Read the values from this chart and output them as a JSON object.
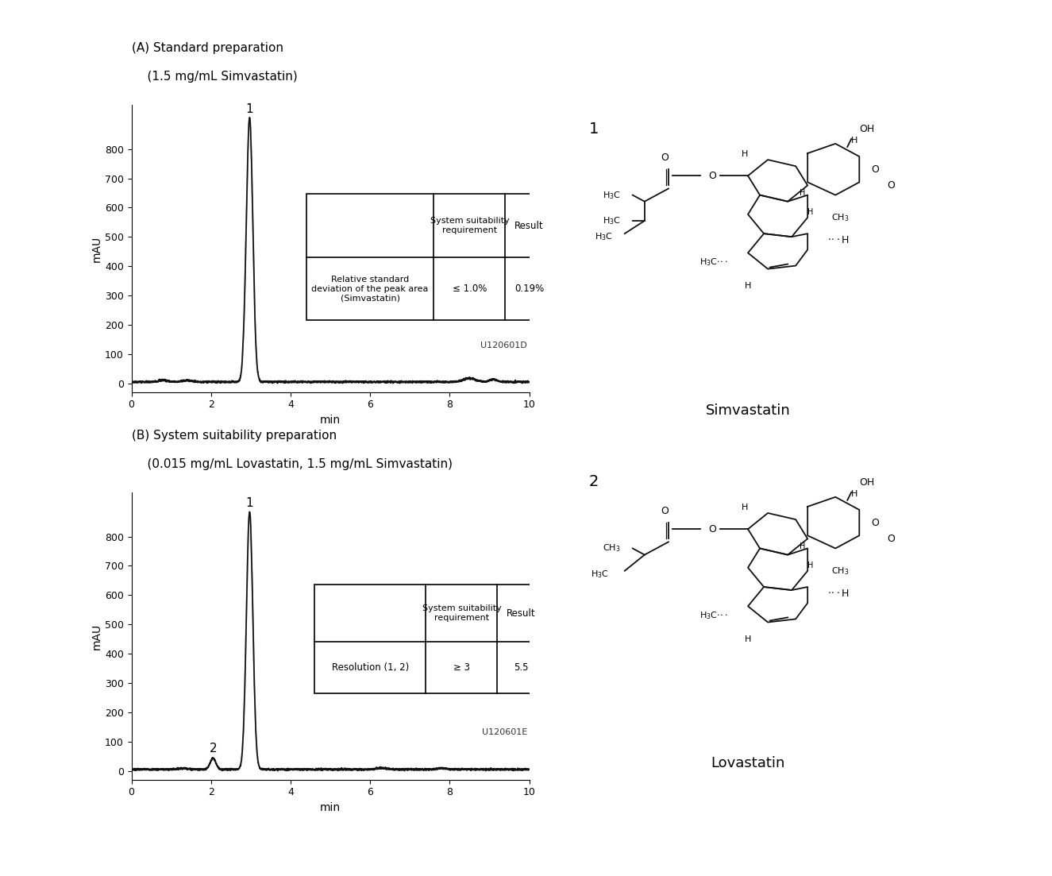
{
  "panel_A_title_line1": "(A) Standard preparation",
  "panel_A_title_line2": "    (1.5 mg/mL Simvastatin)",
  "panel_B_title_line1": "(B) System suitability preparation",
  "panel_B_title_line2": "    (0.015 mg/mL Lovastatin, 1.5 mg/mL Simvastatin)",
  "ylabel": "mAU",
  "xlabel": "min",
  "xlim": [
    0,
    10
  ],
  "ylim_A": [
    -30,
    950
  ],
  "ylim_B": [
    -30,
    950
  ],
  "yticks": [
    0,
    100,
    200,
    300,
    400,
    500,
    600,
    700,
    800
  ],
  "xticks": [
    0,
    2,
    4,
    6,
    8,
    10
  ],
  "peak_A_x": 2.97,
  "peak_A_y": 900,
  "peak_A_label": "1",
  "peak_B1_x": 2.97,
  "peak_B1_y": 880,
  "peak_B1_label": "1",
  "peak_B2_x": 2.05,
  "peak_B2_y": 35,
  "peak_B2_label": "2",
  "code_A": "U120601D",
  "code_B": "U120601E",
  "table_A_col1": "Relative standard\ndeviation of the peak area\n(Simvastatin)",
  "table_A_col2": "≤ 1.0%",
  "table_A_col3": "0.19%",
  "table_A_header2": "System suitability\nrequirement",
  "table_A_header3": "Result",
  "table_B_col1": "Resolution (1, 2)",
  "table_B_col2": "≥ 3",
  "table_B_col3": "5.5",
  "table_B_header2": "System suitability\nrequirement",
  "table_B_header3": "Result",
  "bg_color": "#ffffff",
  "line_color": "#222222",
  "line_color2": "#888888",
  "struct1_label": "Simvastatin",
  "struct2_label": "Lovastatin",
  "num1_label": "1",
  "num2_label": "2"
}
